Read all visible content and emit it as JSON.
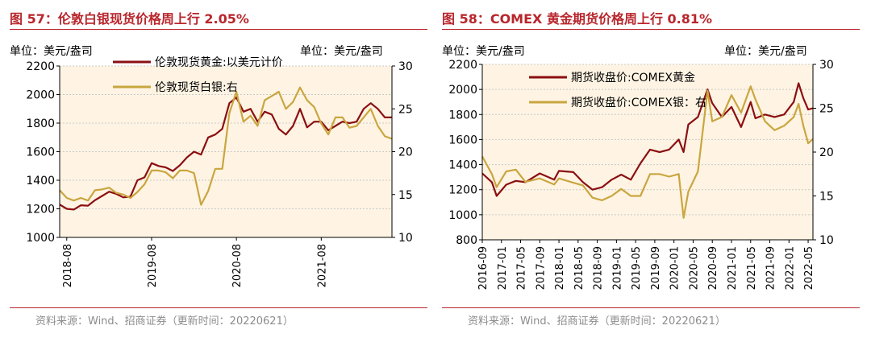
{
  "colors": {
    "gold": "#8b0f12",
    "silver": "#c9a640",
    "fill": "#fff4e3",
    "title": "#b8262c",
    "source": "#8c8c8c"
  },
  "figures": [
    {
      "title": "图 57：伦敦白银现货价格周上行 2.05%",
      "source": "资料来源：Wind、招商证券（更新时间：20220621）",
      "left_unit": "单位：美元/盎司",
      "right_unit": "单位：美元/盎司",
      "legend": [
        {
          "label": "伦敦现货黄金:以美元计价"
        },
        {
          "label": "伦敦现货白银:右"
        }
      ]
    },
    {
      "title": "图 58：COMEX 黄金期货价格周上行 0.81%",
      "source": "资料来源：Wind、招商证券（更新时间：20220621）",
      "left_unit": "单位：美元/盎司",
      "right_unit": "单位：美元/盎司",
      "legend": [
        {
          "label": "期货收盘价:COMEX黄金"
        },
        {
          "label": "期货收盘价:COMEX银：右"
        }
      ]
    }
  ],
  "chart_data": [
    {
      "type": "line",
      "x_range": [
        "2018-07",
        "2022-06"
      ],
      "x_ticks": [
        "2018-08",
        "2019-08",
        "2020-08",
        "2021-08"
      ],
      "ylim": [
        1000,
        2200
      ],
      "yticks": [
        1000,
        1200,
        1400,
        1600,
        1800,
        2000,
        2200
      ],
      "y2lim": [
        10,
        30
      ],
      "y2ticks": [
        10,
        15,
        20,
        25,
        30
      ],
      "legend_position": "top-center",
      "grid": "horizontal",
      "series": [
        {
          "name": "伦敦现货黄金:以美元计价",
          "axis": "left",
          "points": [
            [
              "2018-07",
              1230
            ],
            [
              "2018-08",
              1200
            ],
            [
              "2018-09",
              1195
            ],
            [
              "2018-10",
              1225
            ],
            [
              "2018-11",
              1222
            ],
            [
              "2018-12",
              1260
            ],
            [
              "2019-01",
              1290
            ],
            [
              "2019-02",
              1320
            ],
            [
              "2019-03",
              1305
            ],
            [
              "2019-04",
              1280
            ],
            [
              "2019-05",
              1285
            ],
            [
              "2019-06",
              1400
            ],
            [
              "2019-07",
              1420
            ],
            [
              "2019-08",
              1520
            ],
            [
              "2019-09",
              1500
            ],
            [
              "2019-10",
              1490
            ],
            [
              "2019-11",
              1465
            ],
            [
              "2019-12",
              1505
            ],
            [
              "2020-01",
              1560
            ],
            [
              "2020-02",
              1600
            ],
            [
              "2020-03",
              1580
            ],
            [
              "2020-04",
              1700
            ],
            [
              "2020-05",
              1720
            ],
            [
              "2020-06",
              1760
            ],
            [
              "2020-07",
              1940
            ],
            [
              "2020-08",
              1980
            ],
            [
              "2020-09",
              1880
            ],
            [
              "2020-10",
              1900
            ],
            [
              "2020-11",
              1810
            ],
            [
              "2020-12",
              1880
            ],
            [
              "2021-01",
              1860
            ],
            [
              "2021-02",
              1760
            ],
            [
              "2021-03",
              1720
            ],
            [
              "2021-04",
              1780
            ],
            [
              "2021-05",
              1900
            ],
            [
              "2021-06",
              1770
            ],
            [
              "2021-07",
              1810
            ],
            [
              "2021-08",
              1810
            ],
            [
              "2021-09",
              1750
            ],
            [
              "2021-10",
              1780
            ],
            [
              "2021-11",
              1810
            ],
            [
              "2021-12",
              1800
            ],
            [
              "2022-01",
              1810
            ],
            [
              "2022-02",
              1900
            ],
            [
              "2022-03",
              1940
            ],
            [
              "2022-04",
              1900
            ],
            [
              "2022-05",
              1840
            ],
            [
              "2022-06",
              1840
            ]
          ]
        },
        {
          "name": "伦敦现货白银:右",
          "axis": "right",
          "points": [
            [
              "2018-07",
              15.5
            ],
            [
              "2018-08",
              14.6
            ],
            [
              "2018-09",
              14.3
            ],
            [
              "2018-10",
              14.6
            ],
            [
              "2018-11",
              14.3
            ],
            [
              "2018-12",
              15.5
            ],
            [
              "2019-01",
              15.6
            ],
            [
              "2019-02",
              15.8
            ],
            [
              "2019-03",
              15.2
            ],
            [
              "2019-04",
              15.0
            ],
            [
              "2019-05",
              14.6
            ],
            [
              "2019-06",
              15.3
            ],
            [
              "2019-07",
              16.2
            ],
            [
              "2019-08",
              17.8
            ],
            [
              "2019-09",
              17.8
            ],
            [
              "2019-10",
              17.6
            ],
            [
              "2019-11",
              16.9
            ],
            [
              "2019-12",
              17.8
            ],
            [
              "2020-01",
              17.8
            ],
            [
              "2020-02",
              17.5
            ],
            [
              "2020-03",
              13.8
            ],
            [
              "2020-04",
              15.4
            ],
            [
              "2020-05",
              18.0
            ],
            [
              "2020-06",
              18.0
            ],
            [
              "2020-07",
              24.5
            ],
            [
              "2020-08",
              27.0
            ],
            [
              "2020-09",
              23.5
            ],
            [
              "2020-10",
              24.2
            ],
            [
              "2020-11",
              23.0
            ],
            [
              "2020-12",
              26.0
            ],
            [
              "2021-01",
              26.5
            ],
            [
              "2021-02",
              27.0
            ],
            [
              "2021-03",
              25.0
            ],
            [
              "2021-04",
              25.8
            ],
            [
              "2021-05",
              27.5
            ],
            [
              "2021-06",
              26.0
            ],
            [
              "2021-07",
              25.2
            ],
            [
              "2021-08",
              23.3
            ],
            [
              "2021-09",
              22.0
            ],
            [
              "2021-10",
              24.0
            ],
            [
              "2021-11",
              24.0
            ],
            [
              "2021-12",
              22.8
            ],
            [
              "2022-01",
              23.0
            ],
            [
              "2022-02",
              24.0
            ],
            [
              "2022-03",
              25.0
            ],
            [
              "2022-04",
              23.0
            ],
            [
              "2022-05",
              21.8
            ],
            [
              "2022-06",
              21.5
            ]
          ]
        }
      ]
    },
    {
      "type": "line",
      "x_range": [
        "2016-09",
        "2022-06"
      ],
      "x_ticks": [
        "2016-09",
        "2017-01",
        "2017-05",
        "2017-09",
        "2018-01",
        "2018-05",
        "2018-09",
        "2019-01",
        "2019-05",
        "2019-09",
        "2020-01",
        "2020-05",
        "2020-09",
        "2021-01",
        "2021-05",
        "2021-09",
        "2022-01",
        "2022-05"
      ],
      "ylim": [
        800,
        2200
      ],
      "yticks": [
        800,
        1000,
        1200,
        1400,
        1600,
        1800,
        2000,
        2200
      ],
      "y2lim": [
        10,
        30
      ],
      "y2ticks": [
        10,
        15,
        20,
        25,
        30
      ],
      "legend_position": "top-center",
      "grid": "horizontal",
      "series": [
        {
          "name": "期货收盘价:COMEX黄金",
          "axis": "left",
          "points": [
            [
              "2016-09",
              1330
            ],
            [
              "2016-11",
              1260
            ],
            [
              "2016-12",
              1150
            ],
            [
              "2017-02",
              1240
            ],
            [
              "2017-04",
              1270
            ],
            [
              "2017-06",
              1260
            ],
            [
              "2017-09",
              1330
            ],
            [
              "2017-12",
              1280
            ],
            [
              "2018-01",
              1350
            ],
            [
              "2018-04",
              1340
            ],
            [
              "2018-06",
              1260
            ],
            [
              "2018-08",
              1200
            ],
            [
              "2018-10",
              1220
            ],
            [
              "2018-12",
              1280
            ],
            [
              "2019-02",
              1320
            ],
            [
              "2019-04",
              1280
            ],
            [
              "2019-06",
              1410
            ],
            [
              "2019-08",
              1520
            ],
            [
              "2019-10",
              1500
            ],
            [
              "2019-12",
              1520
            ],
            [
              "2020-02",
              1600
            ],
            [
              "2020-03",
              1500
            ],
            [
              "2020-04",
              1720
            ],
            [
              "2020-06",
              1780
            ],
            [
              "2020-08",
              2000
            ],
            [
              "2020-09",
              1890
            ],
            [
              "2020-11",
              1780
            ],
            [
              "2021-01",
              1860
            ],
            [
              "2021-03",
              1700
            ],
            [
              "2021-05",
              1900
            ],
            [
              "2021-06",
              1770
            ],
            [
              "2021-08",
              1800
            ],
            [
              "2021-10",
              1780
            ],
            [
              "2021-12",
              1800
            ],
            [
              "2022-02",
              1900
            ],
            [
              "2022-03",
              2050
            ],
            [
              "2022-04",
              1930
            ],
            [
              "2022-05",
              1840
            ],
            [
              "2022-06",
              1850
            ]
          ]
        },
        {
          "name": "期货收盘价:COMEX银：右",
          "axis": "right",
          "points": [
            [
              "2016-09",
              19.5
            ],
            [
              "2016-11",
              17.5
            ],
            [
              "2016-12",
              16.0
            ],
            [
              "2017-02",
              17.8
            ],
            [
              "2017-04",
              18.0
            ],
            [
              "2017-06",
              16.6
            ],
            [
              "2017-09",
              17.0
            ],
            [
              "2017-12",
              16.3
            ],
            [
              "2018-01",
              17.0
            ],
            [
              "2018-04",
              16.5
            ],
            [
              "2018-06",
              16.2
            ],
            [
              "2018-08",
              14.8
            ],
            [
              "2018-10",
              14.5
            ],
            [
              "2018-12",
              15.0
            ],
            [
              "2019-02",
              15.8
            ],
            [
              "2019-04",
              15.0
            ],
            [
              "2019-06",
              15.0
            ],
            [
              "2019-08",
              17.5
            ],
            [
              "2019-10",
              17.5
            ],
            [
              "2019-12",
              17.2
            ],
            [
              "2020-02",
              17.5
            ],
            [
              "2020-03",
              12.5
            ],
            [
              "2020-04",
              15.5
            ],
            [
              "2020-06",
              17.8
            ],
            [
              "2020-08",
              27.0
            ],
            [
              "2020-09",
              23.5
            ],
            [
              "2020-11",
              24.0
            ],
            [
              "2021-01",
              26.5
            ],
            [
              "2021-03",
              24.5
            ],
            [
              "2021-05",
              27.5
            ],
            [
              "2021-06",
              26.0
            ],
            [
              "2021-08",
              23.5
            ],
            [
              "2021-10",
              22.5
            ],
            [
              "2021-12",
              23.0
            ],
            [
              "2022-02",
              24.0
            ],
            [
              "2022-03",
              25.5
            ],
            [
              "2022-04",
              23.0
            ],
            [
              "2022-05",
              21.0
            ],
            [
              "2022-06",
              21.5
            ]
          ]
        }
      ]
    }
  ]
}
